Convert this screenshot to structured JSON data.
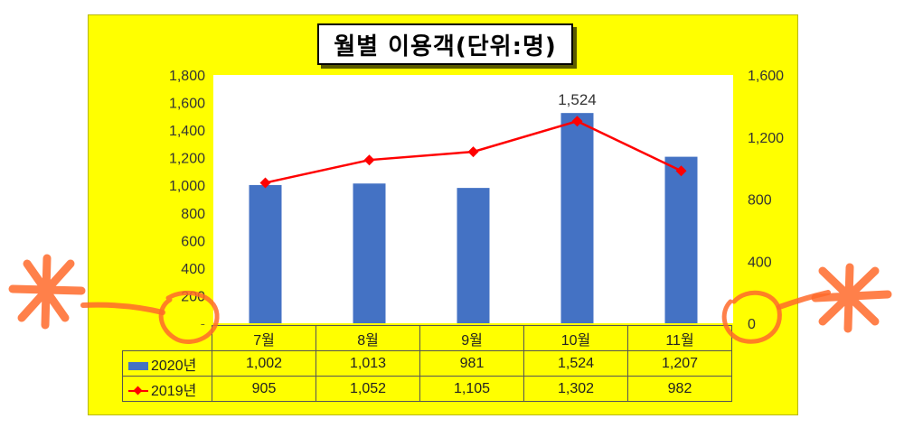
{
  "chart_data": {
    "type": "bar",
    "title": "월별 이용객(단위:명)",
    "categories": [
      "7월",
      "8월",
      "9월",
      "10월",
      "11월"
    ],
    "series": [
      {
        "name": "2020년",
        "type": "bar",
        "axis": "left",
        "values": [
          1002,
          1013,
          981,
          1524,
          1207
        ],
        "value_labels": [
          "1,002",
          "1,013",
          "981",
          "1,524",
          "1,207"
        ],
        "color": "#4472c4"
      },
      {
        "name": "2019년",
        "type": "line",
        "axis": "right",
        "values": [
          905,
          1052,
          1105,
          1302,
          982
        ],
        "value_labels": [
          "905",
          "1,052",
          "1,105",
          "1,302",
          "982"
        ],
        "color": "#ff0000"
      }
    ],
    "y_left": {
      "ylim": [
        0,
        1800
      ],
      "ticks": [
        0,
        200,
        400,
        600,
        800,
        1000,
        1200,
        1400,
        1600,
        1800
      ],
      "tick_labels": [
        "-",
        "200",
        "400",
        "600",
        "800",
        "1,000",
        "1,200",
        "1,400",
        "1,600",
        "1,800"
      ]
    },
    "y_right": {
      "ylim": [
        0,
        1600
      ],
      "ticks": [
        0,
        400,
        800,
        1200,
        1600
      ],
      "tick_labels": [
        "0",
        "400",
        "800",
        "1,200",
        "1,600"
      ]
    },
    "annotations": [
      {
        "category": "10월",
        "series": "2020년",
        "text": "1,524"
      }
    ],
    "grid": false,
    "legend": "data-table",
    "colors": {
      "panel": "#ffff00",
      "plot": "#ffffff",
      "bar": "#4472c4",
      "line": "#ff0000",
      "annotation": "#ff6a2a"
    }
  }
}
